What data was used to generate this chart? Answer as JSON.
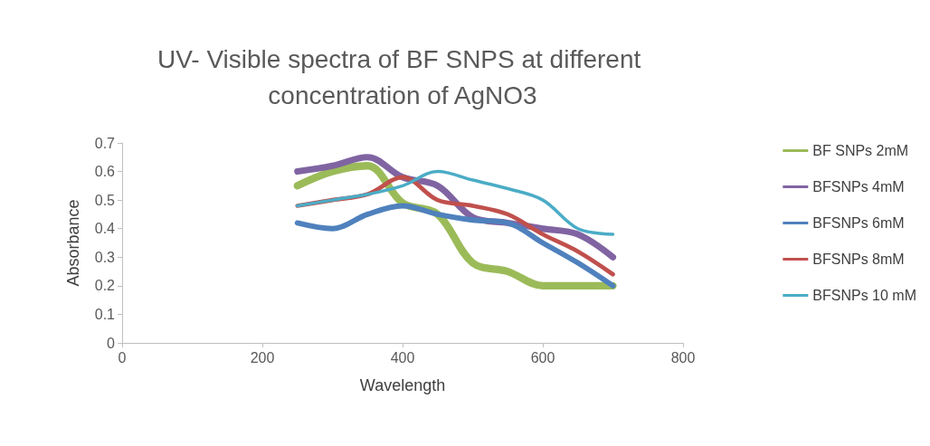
{
  "chart_data": {
    "type": "line",
    "title": "UV- Visible spectra of BF SNPS at different concentration of AgNO3",
    "xlabel": "Wavelength",
    "ylabel": "Absorbance",
    "x": [
      250,
      300,
      350,
      400,
      450,
      500,
      550,
      600,
      650,
      700
    ],
    "series": [
      {
        "name": "BF SNPs 2mM",
        "color": "#9bbb59",
        "values": [
          0.55,
          0.6,
          0.62,
          0.49,
          0.45,
          0.28,
          0.25,
          0.2,
          0.2,
          0.2
        ]
      },
      {
        "name": "BFSNPs 4mM",
        "color": "#8064a2",
        "values": [
          0.6,
          0.62,
          0.65,
          0.58,
          0.55,
          0.44,
          0.42,
          0.4,
          0.38,
          0.3
        ]
      },
      {
        "name": "BFSNPs 6mM",
        "color": "#4f81bd",
        "values": [
          0.42,
          0.4,
          0.45,
          0.48,
          0.45,
          0.43,
          0.42,
          0.35,
          0.28,
          0.2
        ]
      },
      {
        "name": "BFSNPs 8mM",
        "color": "#c0504d",
        "values": [
          0.48,
          0.5,
          0.52,
          0.58,
          0.5,
          0.48,
          0.45,
          0.38,
          0.32,
          0.24
        ]
      },
      {
        "name": "BFSNPs 10 mM",
        "color": "#4bacc6",
        "values": [
          0.48,
          0.5,
          0.52,
          0.55,
          0.6,
          0.57,
          0.54,
          0.5,
          0.4,
          0.38
        ]
      }
    ],
    "xlim": [
      0,
      800
    ],
    "xticks": [
      0,
      200,
      400,
      600,
      800
    ],
    "ylim": [
      0,
      0.7
    ],
    "yticks": [
      0,
      0.1,
      0.2,
      0.3,
      0.4,
      0.5,
      0.6,
      0.7
    ],
    "grid": false,
    "legend": "right",
    "marker": "none",
    "line_style": "solid"
  }
}
